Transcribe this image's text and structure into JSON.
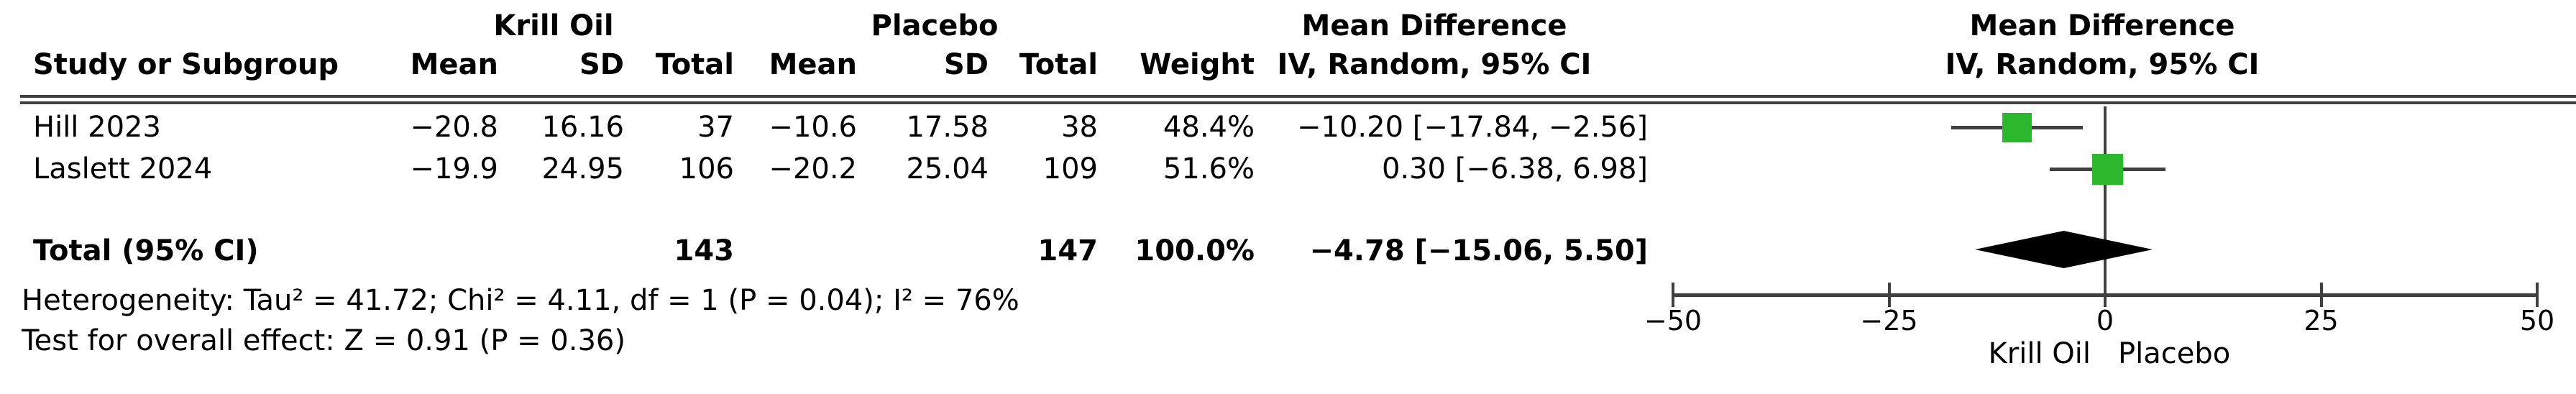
{
  "colors": {
    "background": "#ffffff",
    "text": "#000000",
    "line": "#404040",
    "marker": "#2cb82c",
    "diamond": "#000000"
  },
  "headers": {
    "study": "Study or Subgroup",
    "group_krill": "Krill Oil",
    "group_placebo": "Placebo",
    "mean_difference": "Mean Difference",
    "mean": "Mean",
    "sd": "SD",
    "total": "Total",
    "weight": "Weight",
    "iv_method": "IV, Random, 95% CI"
  },
  "rows": [
    {
      "study": "Hill 2023",
      "mean_t": "−20.8",
      "sd_t": "16.16",
      "total_t": "37",
      "mean_c": "−10.6",
      "sd_c": "17.58",
      "total_c": "38",
      "weight": "48.4%",
      "ci_text": "−10.20 [−17.84, −2.56]"
    },
    {
      "study": "Laslett 2024",
      "mean_t": "−19.9",
      "sd_t": "24.95",
      "total_t": "106",
      "mean_c": "−20.2",
      "sd_c": "25.04",
      "total_c": "109",
      "weight": "51.6%",
      "ci_text": "0.30 [−6.38, 6.98]"
    }
  ],
  "total_row": {
    "label": "Total (95% CI)",
    "total_t": "143",
    "total_c": "147",
    "weight": "100.0%",
    "ci_text": "−4.78 [−15.06, 5.50]"
  },
  "footnotes": {
    "heterogeneity": "Heterogeneity: Tau² = 41.72; Chi² = 4.11, df = 1 (P = 0.04); I² = 76%",
    "overall_effect": "Test for overall effect: Z = 0.91 (P = 0.36)"
  },
  "plot": {
    "xlabel_left": "Krill Oil",
    "xlabel_right": "Placebo"
  },
  "chart_data": {
    "type": "forest",
    "effect_measure": "Mean Difference",
    "method": "IV, Random, 95% CI",
    "comparison_groups": [
      "Krill Oil",
      "Placebo"
    ],
    "studies": [
      {
        "name": "Hill 2023",
        "mean_t": -20.8,
        "sd_t": 16.16,
        "n_t": 37,
        "mean_c": -10.6,
        "sd_c": 17.58,
        "n_c": 38,
        "weight_pct": 48.4,
        "md": -10.2,
        "ci_low": -17.84,
        "ci_high": -2.56
      },
      {
        "name": "Laslett 2024",
        "mean_t": -19.9,
        "sd_t": 24.95,
        "n_t": 106,
        "mean_c": -20.2,
        "sd_c": 25.04,
        "n_c": 109,
        "weight_pct": 51.6,
        "md": 0.3,
        "ci_low": -6.38,
        "ci_high": 6.98
      }
    ],
    "total": {
      "name": "Total (95% CI)",
      "n_t": 143,
      "n_c": 147,
      "weight_pct": 100.0,
      "md": -4.78,
      "ci_low": -15.06,
      "ci_high": 5.5
    },
    "heterogeneity": {
      "tau2": 41.72,
      "chi2": 4.11,
      "df": 1,
      "p": 0.04,
      "i2_pct": 76
    },
    "overall_effect": {
      "z": 0.91,
      "p": 0.36
    },
    "axis": {
      "min": -50,
      "max": 50,
      "ticks": [
        -50,
        -25,
        0,
        25,
        50
      ],
      "tick_labels": [
        "−50",
        "−25",
        "0",
        "25",
        "50"
      ]
    },
    "favours_left": "Krill Oil",
    "favours_right": "Placebo"
  }
}
